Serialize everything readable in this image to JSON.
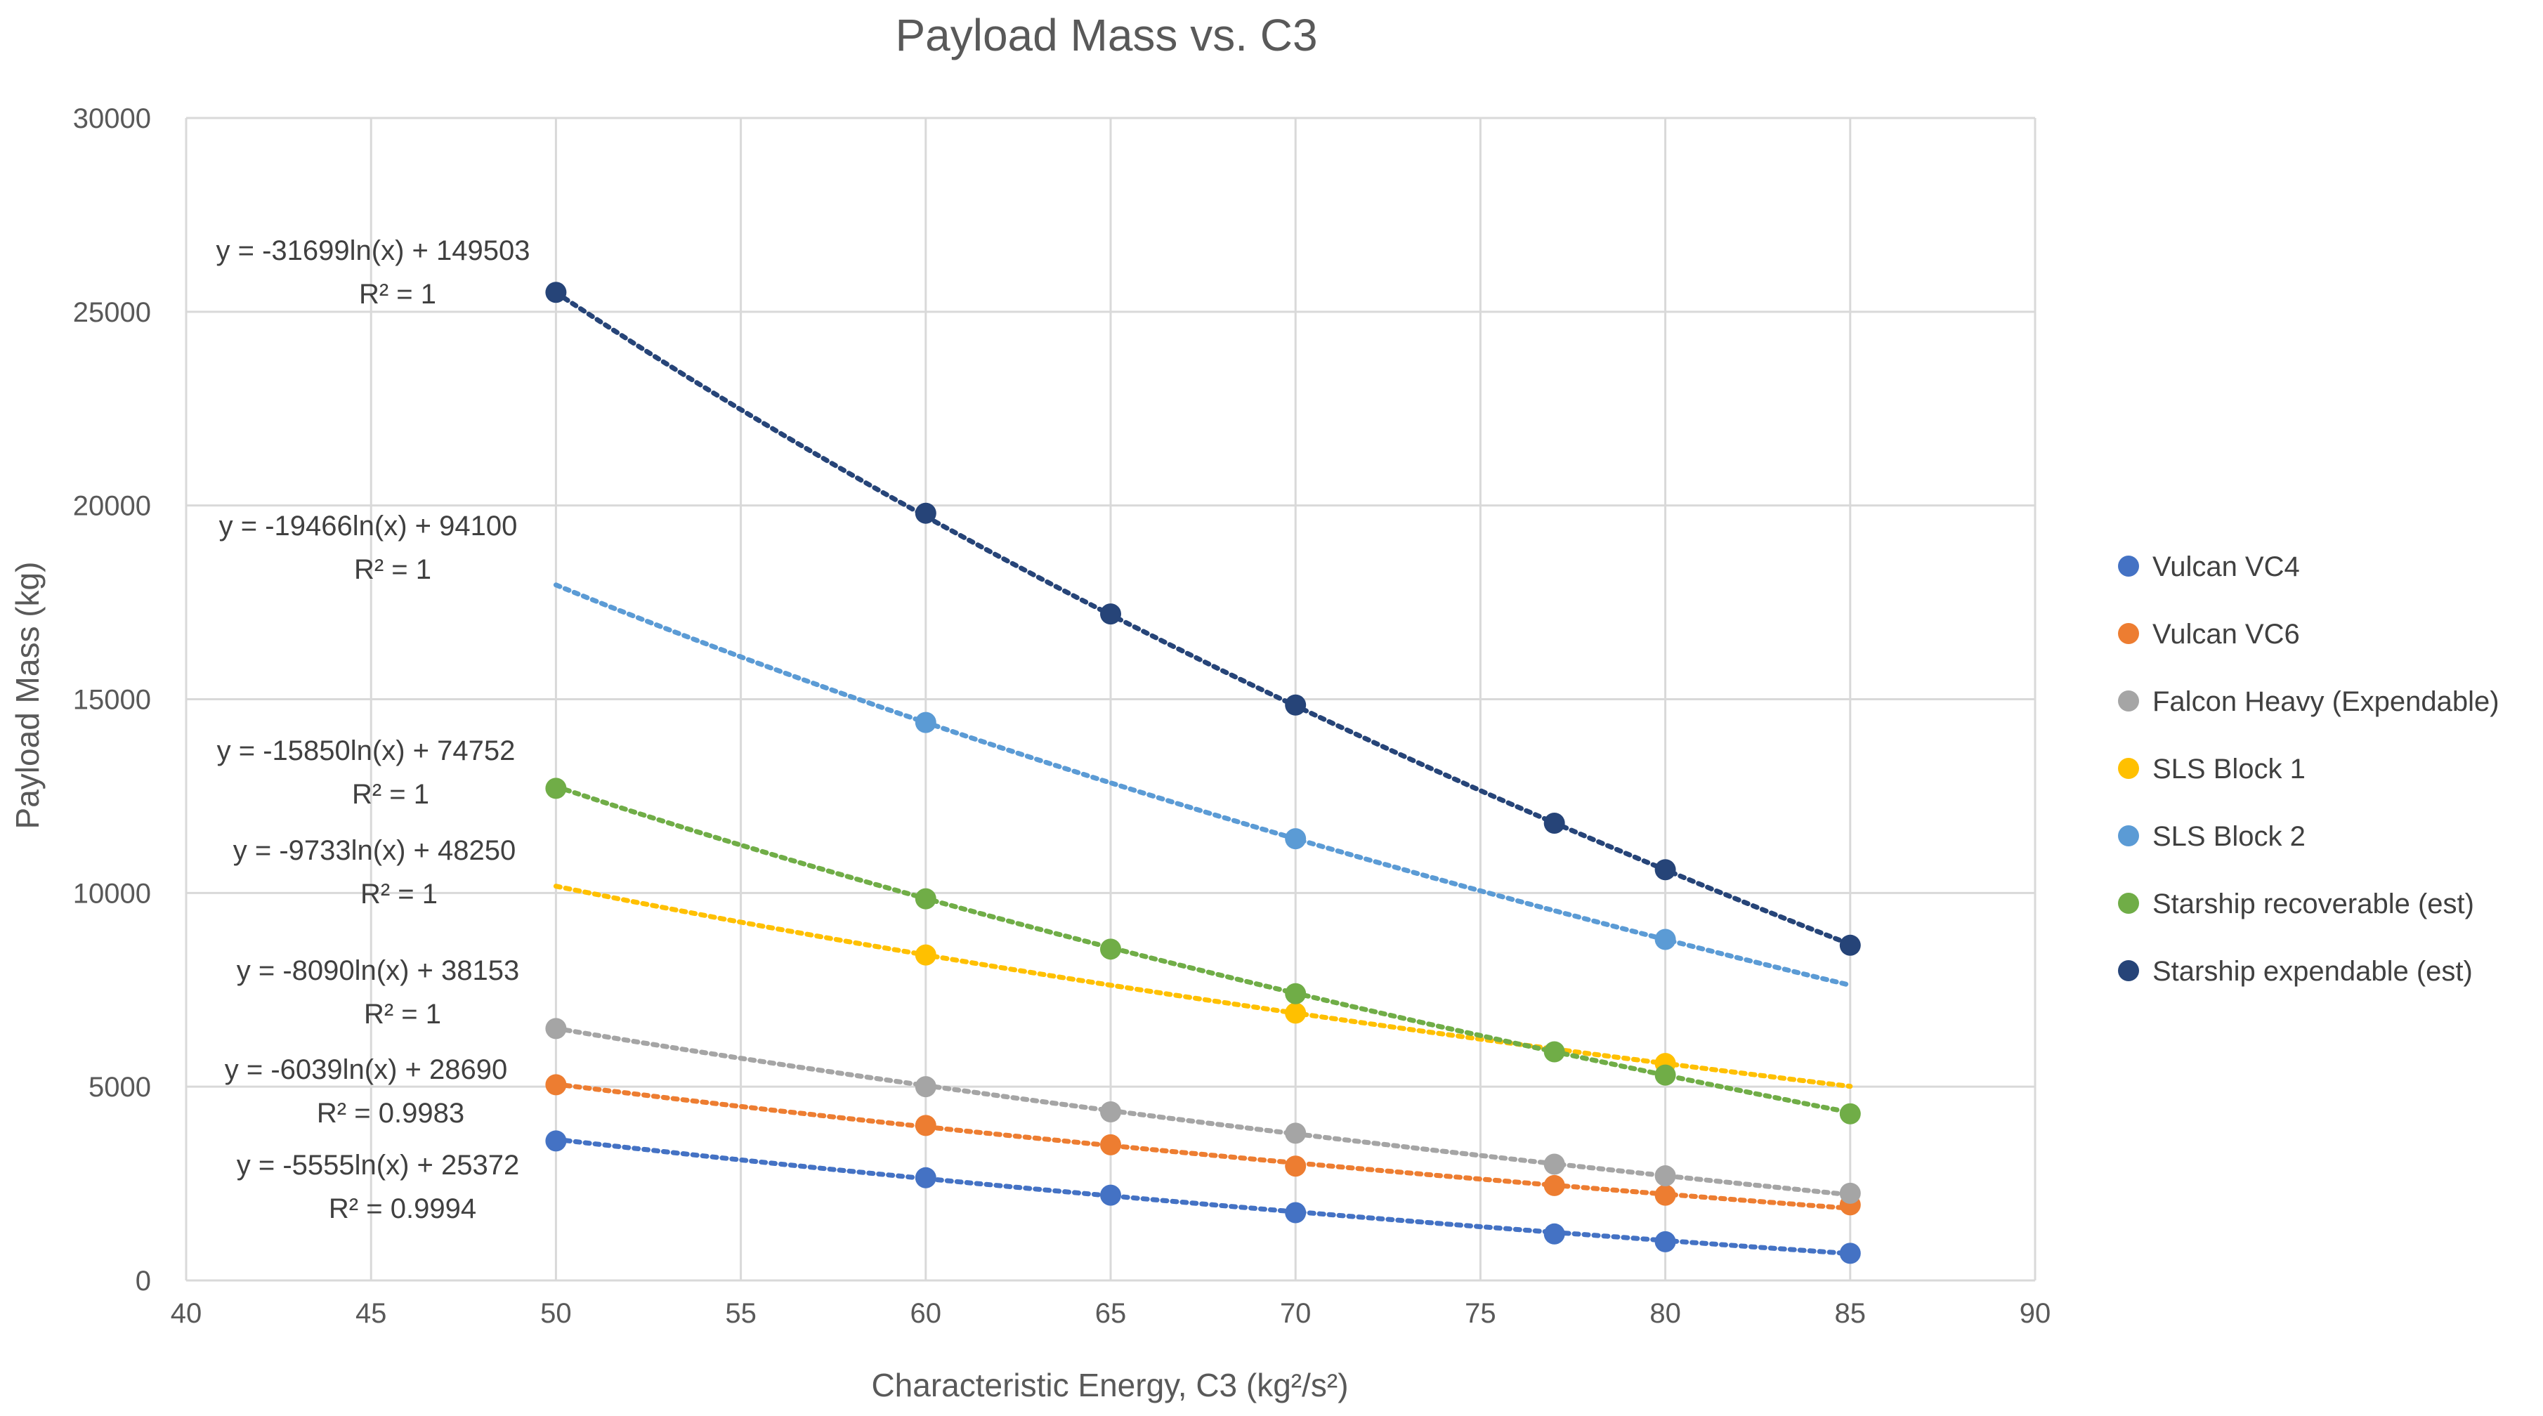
{
  "chart_data": {
    "type": "scatter",
    "title": "Payload Mass vs. C3",
    "xlabel": "Characteristic Energy, C3 (kg²/s²)",
    "ylabel": "Payload Mass (kg)",
    "xlim": [
      40,
      90
    ],
    "ylim": [
      0,
      30000
    ],
    "x_ticks": [
      40,
      45,
      50,
      55,
      60,
      65,
      70,
      75,
      80,
      85,
      90
    ],
    "y_ticks": [
      0,
      5000,
      10000,
      15000,
      20000,
      25000,
      30000
    ],
    "grid": true,
    "legend_position": "right",
    "series": [
      {
        "name": "Vulcan VC4",
        "color": "#4472C4",
        "x": [
          50,
          60,
          65,
          70,
          77,
          80,
          85
        ],
        "y": [
          3600,
          2650,
          2200,
          1750,
          1200,
          1000,
          700
        ],
        "trendline": {
          "a": -5555,
          "b": 25372,
          "x_range": [
            50,
            85
          ],
          "equation": "y = -5555ln(x) + 25372",
          "r2": "R² = 0.9994"
        }
      },
      {
        "name": "Vulcan VC6",
        "color": "#ED7D31",
        "x": [
          50,
          60,
          65,
          70,
          77,
          80,
          85
        ],
        "y": [
          5050,
          4000,
          3500,
          2950,
          2450,
          2200,
          1950
        ],
        "trendline": {
          "a": -6039,
          "b": 28690,
          "x_range": [
            50,
            85
          ],
          "equation": "y = -6039ln(x) + 28690",
          "r2": "R² = 0.9983"
        }
      },
      {
        "name": "Falcon Heavy (Expendable)",
        "color": "#A5A5A5",
        "x": [
          50,
          60,
          65,
          70,
          77,
          80,
          85
        ],
        "y": [
          6500,
          5000,
          4350,
          3800,
          3000,
          2700,
          2250
        ],
        "trendline": {
          "a": -8090,
          "b": 38153,
          "x_range": [
            50,
            85
          ],
          "equation": "y = -8090ln(x) + 38153",
          "r2": "R² = 1"
        }
      },
      {
        "name": "SLS Block 1",
        "color": "#FFC000",
        "x": [
          60,
          70,
          80
        ],
        "y": [
          8400,
          6900,
          5600
        ],
        "trendline": {
          "a": -9733,
          "b": 48250,
          "x_range": [
            50,
            85
          ],
          "equation": "y = -9733ln(x) + 48250",
          "r2": "R² = 1"
        }
      },
      {
        "name": "SLS Block 2",
        "color": "#5B9BD5",
        "x": [
          60,
          70,
          80
        ],
        "y": [
          14400,
          11400,
          8800
        ],
        "trendline": {
          "a": -19466,
          "b": 94100,
          "x_range": [
            50,
            85
          ],
          "equation": "y = -19466ln(x) + 94100",
          "r2": "R² = 1"
        }
      },
      {
        "name": "Starship recoverable (est)",
        "color": "#70AD47",
        "x": [
          50,
          60,
          65,
          70,
          77,
          80,
          85
        ],
        "y": [
          12700,
          9850,
          8550,
          7400,
          5900,
          5300,
          4300
        ],
        "trendline": {
          "a": -15850,
          "b": 74752,
          "x_range": [
            50,
            85
          ],
          "equation": "y = -15850ln(x) + 74752",
          "r2": "R² = 1"
        }
      },
      {
        "name": "Starship expendable (est)",
        "color": "#264478",
        "x": [
          50,
          60,
          65,
          70,
          77,
          80,
          85
        ],
        "y": [
          25500,
          19800,
          17200,
          14850,
          11800,
          10600,
          8650
        ],
        "trendline": {
          "a": -31699,
          "b": 149503,
          "x_range": [
            50,
            85
          ],
          "equation": "y = -31699ln(x) + 149503",
          "r2": "R² = 1"
        }
      }
    ]
  }
}
